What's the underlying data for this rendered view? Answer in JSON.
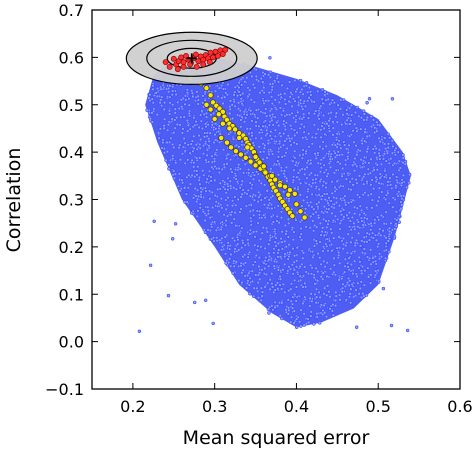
{
  "chart_data": {
    "type": "scatter",
    "title": "",
    "xlabel": "Mean squared error",
    "ylabel": "Correlation",
    "xlim": [
      0.15,
      0.6
    ],
    "ylim": [
      -0.1,
      0.7
    ],
    "xticks": [
      0.2,
      0.3,
      0.4,
      0.5,
      0.6
    ],
    "xtick_labels": [
      "0.2",
      "0.3",
      "0.4",
      "0.5",
      "0.6"
    ],
    "yticks": [
      -0.1,
      0.0,
      0.1,
      0.2,
      0.3,
      0.4,
      0.5,
      0.6,
      0.7
    ],
    "ytick_labels": [
      "−0.1",
      "0.0",
      "0.1",
      "0.2",
      "0.3",
      "0.4",
      "0.5",
      "0.6",
      "0.7"
    ],
    "grid": false,
    "legend": "none",
    "series": [
      {
        "marker": "small blue open circles",
        "color": "#3a4bff",
        "description_of_extent": "dense cloud",
        "envelope": {
          "top_edge": [
            [
              0.225,
              0.56
            ],
            [
              0.25,
              0.6
            ],
            [
              0.3,
              0.6
            ],
            [
              0.35,
              0.58
            ],
            [
              0.4,
              0.555
            ],
            [
              0.45,
              0.52
            ],
            [
              0.5,
              0.47
            ],
            [
              0.53,
              0.4
            ],
            [
              0.54,
              0.35
            ]
          ],
          "bottom_edge": [
            [
              0.54,
              0.35
            ],
            [
              0.52,
              0.22
            ],
            [
              0.5,
              0.12
            ],
            [
              0.47,
              0.07
            ],
            [
              0.43,
              0.04
            ],
            [
              0.4,
              0.03
            ],
            [
              0.37,
              0.06
            ],
            [
              0.33,
              0.12
            ],
            [
              0.3,
              0.2
            ],
            [
              0.26,
              0.3
            ],
            [
              0.23,
              0.42
            ],
            [
              0.215,
              0.5
            ],
            [
              0.225,
              0.56
            ]
          ]
        }
      },
      {
        "marker": "yellow filled circles",
        "color": "#ffe600",
        "points": [
          [
            0.27,
            0.555
          ],
          [
            0.283,
            0.545
          ],
          [
            0.29,
            0.535
          ],
          [
            0.295,
            0.52
          ],
          [
            0.298,
            0.505
          ],
          [
            0.302,
            0.498
          ],
          [
            0.306,
            0.492
          ],
          [
            0.31,
            0.485
          ],
          [
            0.312,
            0.475
          ],
          [
            0.315,
            0.468
          ],
          [
            0.318,
            0.46
          ],
          [
            0.322,
            0.455
          ],
          [
            0.325,
            0.448
          ],
          [
            0.33,
            0.44
          ],
          [
            0.335,
            0.435
          ],
          [
            0.338,
            0.428
          ],
          [
            0.34,
            0.42
          ],
          [
            0.342,
            0.415
          ],
          [
            0.345,
            0.408
          ],
          [
            0.348,
            0.4
          ],
          [
            0.35,
            0.392
          ],
          [
            0.352,
            0.385
          ],
          [
            0.355,
            0.378
          ],
          [
            0.358,
            0.37
          ],
          [
            0.36,
            0.362
          ],
          [
            0.362,
            0.355
          ],
          [
            0.365,
            0.348
          ],
          [
            0.368,
            0.34
          ],
          [
            0.37,
            0.332
          ],
          [
            0.372,
            0.325
          ],
          [
            0.375,
            0.318
          ],
          [
            0.378,
            0.31
          ],
          [
            0.38,
            0.302
          ],
          [
            0.383,
            0.295
          ],
          [
            0.386,
            0.287
          ],
          [
            0.389,
            0.28
          ],
          [
            0.392,
            0.272
          ],
          [
            0.395,
            0.265
          ],
          [
            0.3,
            0.47
          ],
          [
            0.308,
            0.43
          ],
          [
            0.315,
            0.42
          ],
          [
            0.32,
            0.41
          ],
          [
            0.326,
            0.402
          ],
          [
            0.332,
            0.395
          ],
          [
            0.338,
            0.388
          ],
          [
            0.344,
            0.38
          ],
          [
            0.35,
            0.372
          ],
          [
            0.356,
            0.365
          ],
          [
            0.362,
            0.357
          ],
          [
            0.368,
            0.35
          ],
          [
            0.374,
            0.342
          ],
          [
            0.38,
            0.335
          ],
          [
            0.386,
            0.327
          ],
          [
            0.392,
            0.32
          ],
          [
            0.398,
            0.312
          ],
          [
            0.29,
            0.5
          ],
          [
            0.295,
            0.49
          ],
          [
            0.305,
            0.48
          ],
          [
            0.31,
            0.46
          ],
          [
            0.318,
            0.45
          ],
          [
            0.33,
            0.43
          ],
          [
            0.34,
            0.41
          ],
          [
            0.35,
            0.39
          ],
          [
            0.36,
            0.37
          ],
          [
            0.37,
            0.35
          ],
          [
            0.38,
            0.33
          ],
          [
            0.39,
            0.31
          ],
          [
            0.4,
            0.29
          ],
          [
            0.405,
            0.275
          ],
          [
            0.41,
            0.262
          ]
        ]
      },
      {
        "marker": "red filled circles",
        "color": "#ff2d2d",
        "points": [
          [
            0.24,
            0.59
          ],
          [
            0.245,
            0.58
          ],
          [
            0.25,
            0.597
          ],
          [
            0.253,
            0.585
          ],
          [
            0.256,
            0.592
          ],
          [
            0.259,
            0.6
          ],
          [
            0.262,
            0.59
          ],
          [
            0.265,
            0.603
          ],
          [
            0.268,
            0.595
          ],
          [
            0.271,
            0.588
          ],
          [
            0.274,
            0.598
          ],
          [
            0.277,
            0.606
          ],
          [
            0.28,
            0.592
          ],
          [
            0.283,
            0.602
          ],
          [
            0.286,
            0.595
          ],
          [
            0.289,
            0.605
          ],
          [
            0.292,
            0.598
          ],
          [
            0.295,
            0.61
          ],
          [
            0.298,
            0.6
          ],
          [
            0.301,
            0.612
          ],
          [
            0.304,
            0.603
          ],
          [
            0.307,
            0.615
          ],
          [
            0.31,
            0.607
          ],
          [
            0.313,
            0.616
          ],
          [
            0.255,
            0.575
          ],
          [
            0.262,
            0.58
          ],
          [
            0.27,
            0.585
          ],
          [
            0.278,
            0.58
          ],
          [
            0.286,
            0.585
          ],
          [
            0.294,
            0.59
          ]
        ]
      }
    ],
    "annotations": [
      {
        "type": "concentric ellipses around best point",
        "center": [
          0.272,
          0.598
        ],
        "rings": [
          {
            "rx": 0.08,
            "ry": 0.055,
            "fill": "#cfcfcf"
          },
          {
            "rx": 0.055,
            "ry": 0.038,
            "fill": "none"
          },
          {
            "rx": 0.03,
            "ry": 0.021,
            "fill": "none"
          }
        ],
        "center_marker": "+"
      }
    ]
  }
}
